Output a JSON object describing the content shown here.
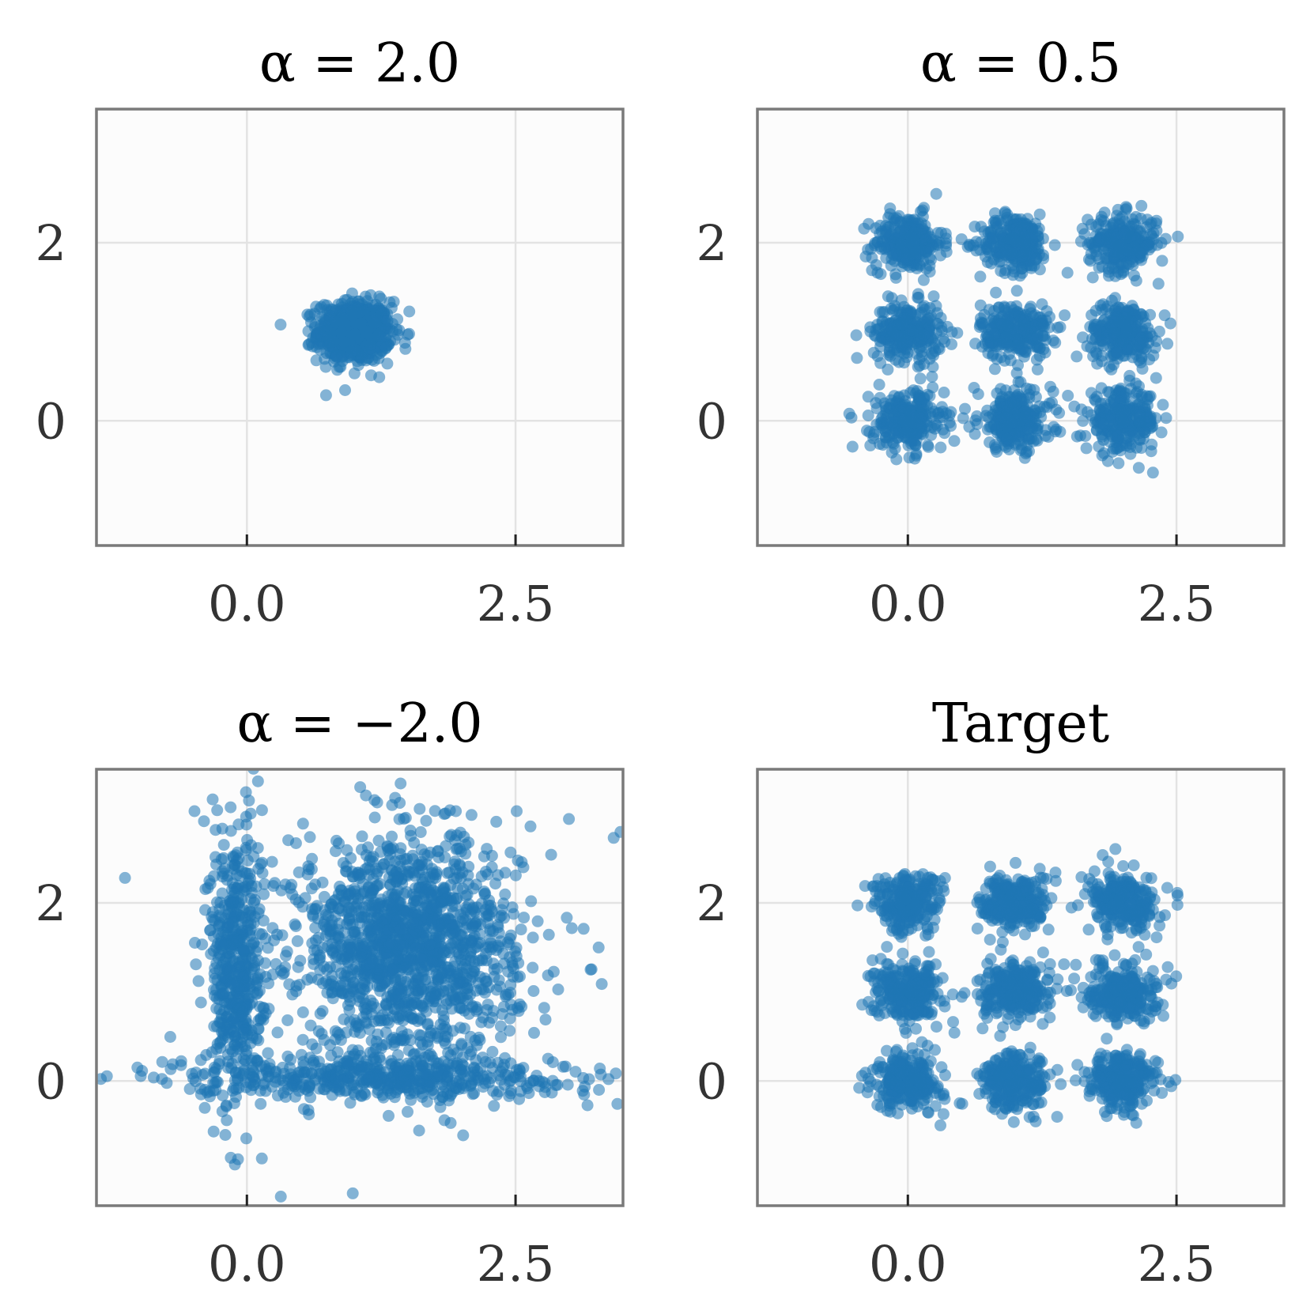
{
  "chart_data": [
    {
      "type": "scatter",
      "title": "α = 2.0",
      "xlim": [
        -1.4,
        3.5
      ],
      "ylim": [
        -1.4,
        3.5
      ],
      "xticks": [
        0.0,
        2.5
      ],
      "xtick_labels": [
        "0.0",
        "2.5"
      ],
      "yticks": [
        0,
        2
      ],
      "ytick_labels": [
        "0",
        "2"
      ],
      "grid": true,
      "color": "#1f77b4",
      "clusters": [
        {
          "center": [
            1.0,
            1.0
          ],
          "spread": 0.17,
          "n": 700
        }
      ]
    },
    {
      "type": "scatter",
      "title": "α = 0.5",
      "xlim": [
        -1.4,
        3.5
      ],
      "ylim": [
        -1.4,
        3.5
      ],
      "xticks": [
        0.0,
        2.5
      ],
      "xtick_labels": [
        "0.0",
        "2.5"
      ],
      "yticks": [
        0,
        2
      ],
      "ytick_labels": [
        "0",
        "2"
      ],
      "grid": true,
      "color": "#1f77b4",
      "clusters": [
        {
          "center": [
            0.0,
            2.0
          ],
          "spread": 0.16,
          "n": 260
        },
        {
          "center": [
            1.0,
            2.0
          ],
          "spread": 0.16,
          "n": 260
        },
        {
          "center": [
            2.0,
            2.0
          ],
          "spread": 0.16,
          "n": 260
        },
        {
          "center": [
            0.0,
            1.0
          ],
          "spread": 0.16,
          "n": 260
        },
        {
          "center": [
            1.0,
            1.0
          ],
          "spread": 0.16,
          "n": 260
        },
        {
          "center": [
            2.0,
            1.0
          ],
          "spread": 0.16,
          "n": 260
        },
        {
          "center": [
            0.0,
            0.0
          ],
          "spread": 0.17,
          "n": 260
        },
        {
          "center": [
            1.0,
            0.0
          ],
          "spread": 0.17,
          "n": 260
        },
        {
          "center": [
            2.0,
            0.0
          ],
          "spread": 0.17,
          "n": 260
        }
      ]
    },
    {
      "type": "scatter",
      "title": "α = −2.0",
      "xlim": [
        -1.4,
        3.5
      ],
      "ylim": [
        -1.4,
        3.5
      ],
      "xticks": [
        0.0,
        2.5
      ],
      "xtick_labels": [
        "0.0",
        "2.5"
      ],
      "yticks": [
        0,
        2
      ],
      "ytick_labels": [
        "0",
        "2"
      ],
      "grid": true,
      "color": "#1f77b4",
      "clusters": [
        {
          "center": [
            1.5,
            1.5
          ],
          "spread_x": 0.5,
          "spread_y": 0.6,
          "n": 1400
        },
        {
          "center": [
            -0.1,
            1.3
          ],
          "spread_x": 0.12,
          "spread_y": 0.8,
          "n": 500
        },
        {
          "center": [
            1.2,
            0.05
          ],
          "spread_x": 0.9,
          "spread_y": 0.12,
          "n": 500
        },
        {
          "center": [
            1.5,
            1.5
          ],
          "spread_x": 1.1,
          "spread_y": 1.0,
          "n": 120
        }
      ]
    },
    {
      "type": "scatter",
      "title": "Target",
      "xlim": [
        -1.4,
        3.5
      ],
      "ylim": [
        -1.4,
        3.5
      ],
      "xticks": [
        0.0,
        2.5
      ],
      "xtick_labels": [
        "0.0",
        "2.5"
      ],
      "yticks": [
        0,
        2
      ],
      "ytick_labels": [
        "0",
        "2"
      ],
      "grid": true,
      "color": "#1f77b4",
      "clusters": [
        {
          "center": [
            0.0,
            2.0
          ],
          "spread": 0.16,
          "n": 260
        },
        {
          "center": [
            1.0,
            2.0
          ],
          "spread": 0.16,
          "n": 260
        },
        {
          "center": [
            2.0,
            2.0
          ],
          "spread": 0.16,
          "n": 260
        },
        {
          "center": [
            0.0,
            1.0
          ],
          "spread": 0.16,
          "n": 260
        },
        {
          "center": [
            1.0,
            1.0
          ],
          "spread": 0.16,
          "n": 260
        },
        {
          "center": [
            2.0,
            1.0
          ],
          "spread": 0.16,
          "n": 260
        },
        {
          "center": [
            0.0,
            0.0
          ],
          "spread": 0.16,
          "n": 260
        },
        {
          "center": [
            1.0,
            0.0
          ],
          "spread": 0.16,
          "n": 260
        },
        {
          "center": [
            2.0,
            0.0
          ],
          "spread": 0.16,
          "n": 260
        }
      ]
    }
  ]
}
